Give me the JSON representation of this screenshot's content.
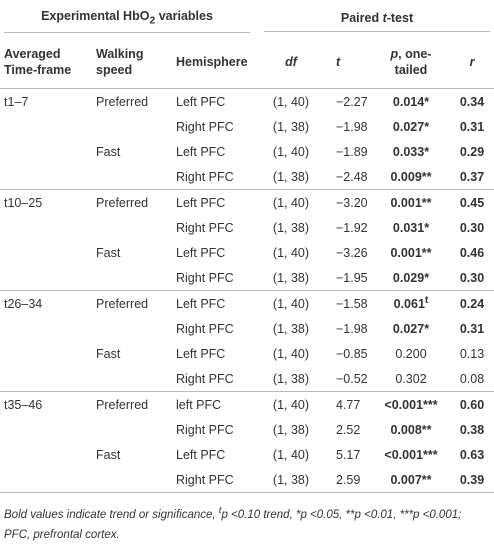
{
  "header": {
    "group_left": [
      {
        "text": "Experimental HbO"
      },
      {
        "text": "2",
        "sub": true
      },
      {
        "text": " variables"
      }
    ],
    "group_right": [
      {
        "text": "Paired "
      },
      {
        "text": "t",
        "italic": true
      },
      {
        "text": "-test"
      }
    ],
    "columns": [
      [
        {
          "text": "Averaged Time-frame"
        }
      ],
      [
        {
          "text": "Walking speed"
        }
      ],
      [
        {
          "text": "Hemisphere"
        }
      ],
      [
        {
          "text": "df",
          "italic": true
        }
      ],
      [
        {
          "text": "t",
          "italic": true
        }
      ],
      [
        {
          "text": "p",
          "italic": true
        },
        {
          "text": ", one-tailed"
        }
      ],
      [
        {
          "text": "r",
          "italic": true
        }
      ]
    ]
  },
  "groups": [
    {
      "time": "t1–7",
      "rows": [
        {
          "speed": "Preferred",
          "hemisphere": "Left PFC",
          "df": "(1, 40)",
          "t": "−2.27",
          "p": "0.014*",
          "r": "0.34",
          "bold": true
        },
        {
          "hemisphere": "Right PFC",
          "df": "(1, 38)",
          "t": "−1.98",
          "p": "0.027*",
          "r": "0.31",
          "bold": true
        },
        {
          "speed": "Fast",
          "hemisphere": "Left PFC",
          "df": "(1, 40)",
          "t": "−1.89",
          "p": "0.033*",
          "r": "0.29",
          "bold": true
        },
        {
          "hemisphere": "Right PFC",
          "df": "(1, 38)",
          "t": "−2.48",
          "p": "0.009**",
          "r": "0.37",
          "bold": true
        }
      ]
    },
    {
      "time": "t10–25",
      "rows": [
        {
          "speed": "Preferred",
          "hemisphere": "Left PFC",
          "df": "(1, 40)",
          "t": "−3.20",
          "p": "0.001**",
          "r": "0.45",
          "bold": true
        },
        {
          "hemisphere": "Right PFC",
          "df": "(1, 38)",
          "t": "−1.92",
          "p": "0.031*",
          "r": "0.30",
          "bold": true
        },
        {
          "speed": "Fast",
          "hemisphere": "Left PFC",
          "df": "(1, 40)",
          "t": "−3.26",
          "p": "0.001**",
          "r": "0.46",
          "bold": true
        },
        {
          "hemisphere": "Right PFC",
          "df": "(1, 38)",
          "t": "−1.95",
          "p": "0.029*",
          "r": "0.30",
          "bold": true
        }
      ]
    },
    {
      "time": "t26–34",
      "rows": [
        {
          "speed": "Preferred",
          "hemisphere": "Left PFC",
          "df": "(1, 40)",
          "t": "−1.58",
          "p": "0.061",
          "p_sup": "t",
          "r": "0.24",
          "bold": true
        },
        {
          "hemisphere": "Right PFC",
          "df": "(1, 38)",
          "t": "−1.98",
          "p": "0.027*",
          "r": "0.31",
          "bold": true
        },
        {
          "speed": "Fast",
          "hemisphere": "Left PFC",
          "df": "(1, 40)",
          "t": "−0.85",
          "p": "0.200",
          "r": "0.13",
          "bold": false
        },
        {
          "hemisphere": "Right PFC",
          "df": "(1, 38)",
          "t": "−0.52",
          "p": "0.302",
          "r": "0.08",
          "bold": false
        }
      ]
    },
    {
      "time": "t35–46",
      "rows": [
        {
          "speed": "Preferred",
          "hemisphere": "left PFC",
          "df": "(1, 40)",
          "t": "4.77",
          "p": "<0.001***",
          "r": "0.60",
          "bold": true
        },
        {
          "hemisphere": "Right PFC",
          "df": "(1, 38)",
          "t": "2.52",
          "p": "0.008**",
          "r": "0.38",
          "bold": true
        },
        {
          "speed": "Fast",
          "hemisphere": "Left PFC",
          "df": "(1, 40)",
          "t": "5.17",
          "p": "<0.001***",
          "r": "0.63",
          "bold": true
        },
        {
          "hemisphere": "Right PFC",
          "df": "(1, 38)",
          "t": "2.59",
          "p": "0.007**",
          "r": "0.39",
          "bold": true
        }
      ]
    }
  ],
  "footnote": [
    {
      "text": "Bold values indicate trend or significance, "
    },
    {
      "text": "t",
      "sup": true
    },
    {
      "text": "p",
      "italic": true
    },
    {
      "text": " <0.10 trend, *"
    },
    {
      "text": "p",
      "italic": true
    },
    {
      "text": " <0.05, **"
    },
    {
      "text": "p",
      "italic": true
    },
    {
      "text": " <0.01, ***"
    },
    {
      "text": "p",
      "italic": true
    },
    {
      "text": " <0.001; PFC, prefrontal cortex."
    }
  ]
}
